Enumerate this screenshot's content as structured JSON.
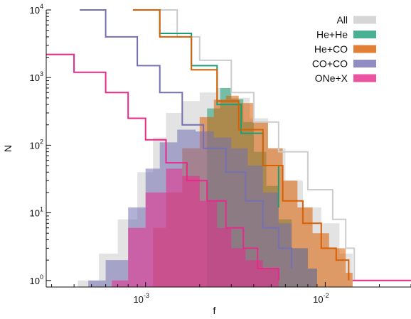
{
  "chart_data": {
    "type": "histogram",
    "xlabel": "f",
    "ylabel": "N",
    "xscale": "log",
    "yscale": "log",
    "xlim": [
      0.00028,
      0.03
    ],
    "ylim": [
      0.8,
      10000
    ],
    "x_ticks": [
      {
        "value": 0.001,
        "base": "10",
        "exp": "-3"
      },
      {
        "value": 0.01,
        "base": "10",
        "exp": "-2"
      }
    ],
    "y_ticks": [
      {
        "value": 1,
        "base": "10",
        "exp": "0"
      },
      {
        "value": 10,
        "base": "10",
        "exp": "1"
      },
      {
        "value": 100,
        "base": "10",
        "exp": "2"
      },
      {
        "value": 1000,
        "base": "10",
        "exp": "3"
      },
      {
        "value": 10000,
        "base": "10",
        "exp": "4"
      }
    ],
    "grid": false,
    "legend_position": "top-right",
    "series": [
      {
        "name": "All",
        "color": "#cccccc"
      },
      {
        "name": "He+He",
        "color": "#1b9e77"
      },
      {
        "name": "He+CO",
        "color": "#d95f02"
      },
      {
        "name": "CO+CO",
        "color": "#7570b3"
      },
      {
        "name": "ONe+X",
        "color": "#e7298a"
      }
    ],
    "histograms": [
      {
        "series": "All",
        "points": [
          [
            0.00042,
            1
          ],
          [
            0.00055,
            2.5
          ],
          [
            0.0007,
            8
          ],
          [
            0.0009,
            40
          ],
          [
            0.0011,
            130
          ],
          [
            0.0013,
            300
          ],
          [
            0.0016,
            450
          ],
          [
            0.002,
            600
          ],
          [
            0.0025,
            700
          ],
          [
            0.003,
            500
          ],
          [
            0.0038,
            250
          ],
          [
            0.0048,
            90
          ],
          [
            0.006,
            30
          ],
          [
            0.0075,
            12
          ],
          [
            0.0095,
            7
          ],
          [
            0.012,
            2.5
          ],
          [
            0.0142,
            1
          ]
        ]
      },
      {
        "series": "He+He",
        "points": [
          [
            0.0022,
            350
          ],
          [
            0.0026,
            700
          ],
          [
            0.003,
            480
          ],
          [
            0.0035,
            220
          ],
          [
            0.004,
            80
          ],
          [
            0.0047,
            25
          ],
          [
            0.0055,
            8
          ],
          [
            0.0065,
            3
          ],
          [
            0.008,
            1.5
          ],
          [
            0.009,
            1
          ]
        ]
      },
      {
        "series": "He+CO",
        "points": [
          [
            0.0011,
            6
          ],
          [
            0.0013,
            20
          ],
          [
            0.0016,
            90
          ],
          [
            0.002,
            260
          ],
          [
            0.0024,
            470
          ],
          [
            0.0028,
            540
          ],
          [
            0.0033,
            420
          ],
          [
            0.004,
            220
          ],
          [
            0.0048,
            90
          ],
          [
            0.0058,
            30
          ],
          [
            0.007,
            12
          ],
          [
            0.0085,
            5
          ],
          [
            0.0105,
            3
          ],
          [
            0.013,
            1.3
          ],
          [
            0.0142,
            1
          ]
        ]
      },
      {
        "series": "CO+CO",
        "points": [
          [
            0.00048,
            1
          ],
          [
            0.0006,
            2
          ],
          [
            0.0008,
            12
          ],
          [
            0.001,
            45
          ],
          [
            0.0012,
            110
          ],
          [
            0.0015,
            170
          ],
          [
            0.0019,
            160
          ],
          [
            0.0024,
            130
          ],
          [
            0.003,
            90
          ],
          [
            0.0037,
            50
          ],
          [
            0.0045,
            20
          ],
          [
            0.0055,
            7
          ],
          [
            0.0065,
            3
          ],
          [
            0.008,
            1.5
          ],
          [
            0.009,
            1
          ]
        ]
      },
      {
        "series": "ONe+X",
        "points": [
          [
            0.00065,
            1
          ],
          [
            0.0008,
            6
          ],
          [
            0.001,
            20
          ],
          [
            0.0013,
            45
          ],
          [
            0.0016,
            35
          ],
          [
            0.002,
            15
          ],
          [
            0.0025,
            6
          ],
          [
            0.003,
            3
          ],
          [
            0.0036,
            2
          ],
          [
            0.0045,
            1.5
          ],
          [
            0.0055,
            1
          ]
        ]
      }
    ],
    "cumulative": [
      {
        "series": "All",
        "points": [
          [
            0.001,
            10000
          ],
          [
            0.0015,
            4000
          ],
          [
            0.002,
            1800
          ],
          [
            0.003,
            600
          ],
          [
            0.004,
            220
          ],
          [
            0.0055,
            80
          ],
          [
            0.008,
            22
          ],
          [
            0.011,
            8
          ],
          [
            0.013,
            3
          ],
          [
            0.0145,
            1
          ]
        ]
      },
      {
        "series": "He+He",
        "points": [
          [
            0.00085,
            10000
          ],
          [
            0.0012,
            4500
          ],
          [
            0.0018,
            1500
          ],
          [
            0.0025,
            400
          ],
          [
            0.0034,
            150
          ],
          [
            0.0045,
            50
          ],
          [
            0.0055,
            12
          ]
        ]
      },
      {
        "series": "He+CO",
        "points": [
          [
            0.00085,
            10000
          ],
          [
            0.0012,
            4000
          ],
          [
            0.0018,
            1300
          ],
          [
            0.0025,
            450
          ],
          [
            0.0033,
            170
          ],
          [
            0.0045,
            50
          ],
          [
            0.0058,
            15
          ],
          [
            0.0075,
            7
          ],
          [
            0.0095,
            3
          ],
          [
            0.0115,
            2
          ],
          [
            0.0135,
            1
          ]
        ]
      },
      {
        "series": "CO+CO",
        "points": [
          [
            0.00043,
            10000
          ],
          [
            0.0006,
            4000
          ],
          [
            0.0009,
            1500
          ],
          [
            0.0012,
            600
          ],
          [
            0.0016,
            200
          ],
          [
            0.0021,
            90
          ],
          [
            0.0028,
            40
          ],
          [
            0.0036,
            15
          ],
          [
            0.0045,
            6
          ],
          [
            0.0055,
            3
          ],
          [
            0.0065,
            1.5
          ]
        ]
      },
      {
        "series": "ONe+X",
        "points": [
          [
            0.00028,
            2200
          ],
          [
            0.0004,
            1200
          ],
          [
            0.0006,
            600
          ],
          [
            0.0008,
            250
          ],
          [
            0.001,
            120
          ],
          [
            0.0013,
            55
          ],
          [
            0.0017,
            30
          ],
          [
            0.0022,
            15
          ],
          [
            0.0028,
            6
          ],
          [
            0.0035,
            3
          ],
          [
            0.0042,
            1.5
          ],
          [
            0.0055,
            1
          ]
        ]
      }
    ],
    "overflow_line": {
      "series": "ONe+X",
      "from": 0.0142,
      "to": 0.03,
      "value": 1
    }
  }
}
